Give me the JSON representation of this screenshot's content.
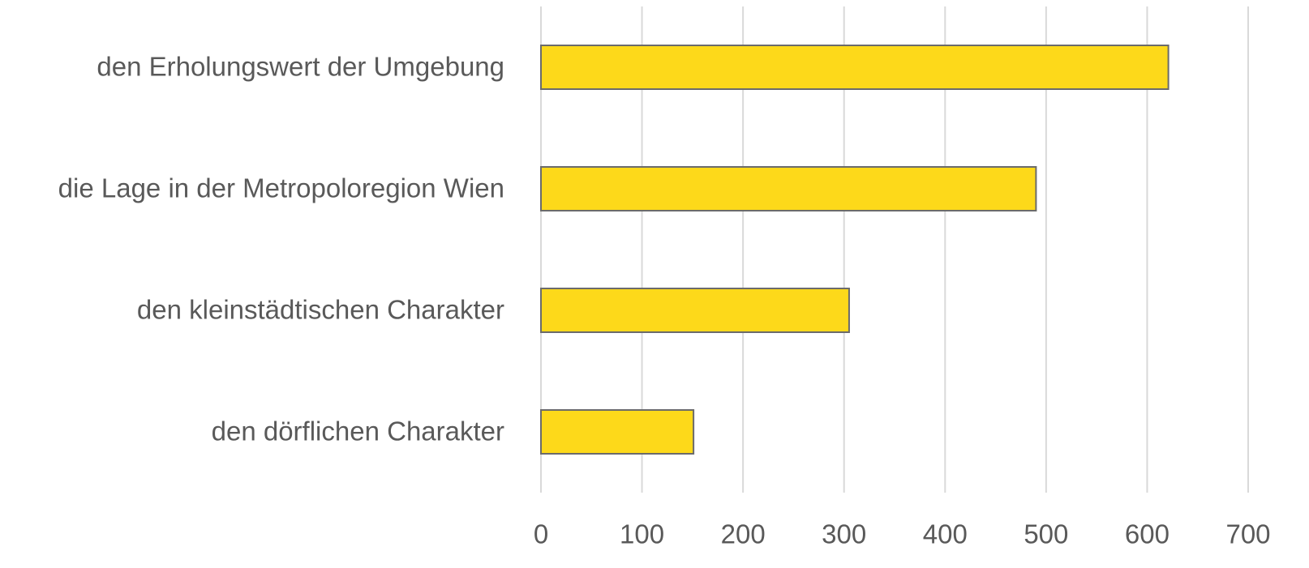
{
  "chart_data": {
    "type": "bar",
    "orientation": "horizontal",
    "categories": [
      "den Erholungswert der Umgebung",
      "die Lage in der Metropoloregion Wien",
      "den kleinstädtischen Charakter",
      "den dörflichen Charakter"
    ],
    "values": [
      621,
      490,
      305,
      151
    ],
    "color": "#fdd91a",
    "xlim": [
      0,
      700
    ],
    "xticks": [
      0,
      100,
      200,
      300,
      400,
      500,
      600,
      700
    ],
    "grid": true
  }
}
